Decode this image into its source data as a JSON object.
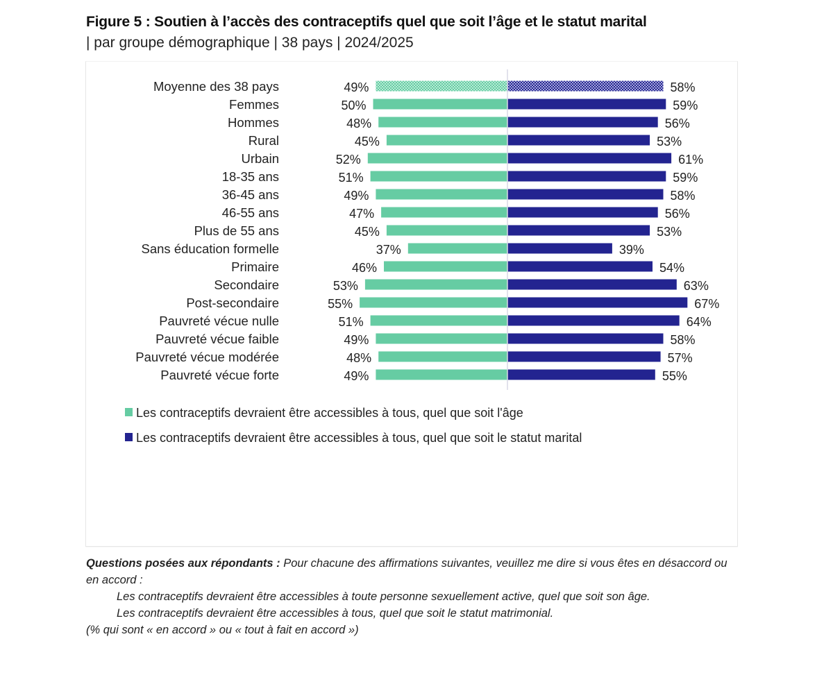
{
  "header": {
    "title": "Figure 5 : Soutien à l’accès des contraceptifs quel que soit l’âge et le statut marital",
    "subtitle": "| par groupe démographique | 38 pays | 2024/2025"
  },
  "colors": {
    "age_series": "#66cca3",
    "marital_series": "#232490",
    "age_series_average": "#9ee3c7",
    "marital_series_average": "#6d6cbf",
    "axis": "#d9d9e6"
  },
  "chart_data": {
    "type": "bar",
    "orientation": "horizontal-diverging",
    "title": "Figure 5 : Soutien à l’accès des contraceptifs quel que soit l’âge et le statut marital",
    "subtitle": "| par groupe démographique | 38 pays | 2024/2025",
    "xlabel": "",
    "ylabel": "",
    "unit": "%",
    "xlim": [
      0,
      100
    ],
    "grid": false,
    "legend_position": "bottom",
    "groups": [
      {
        "name": "average",
        "categories": [
          "Moyenne des 38 pays"
        ],
        "pattern": "checkered"
      },
      {
        "name": "sexe",
        "categories": [
          "Femmes",
          "Hommes"
        ]
      },
      {
        "name": "milieu",
        "categories": [
          "Rural",
          "Urbain"
        ]
      },
      {
        "name": "age",
        "categories": [
          "18-35 ans",
          "36-45 ans",
          "46-55 ans",
          "Plus de 55 ans"
        ]
      },
      {
        "name": "education",
        "categories": [
          "Sans éducation formelle",
          "Primaire",
          "Secondaire",
          "Post-secondaire"
        ]
      },
      {
        "name": "pauvrete",
        "categories": [
          "Pauvreté vécue nulle",
          "Pauvreté vécue faible",
          "Pauvreté vécue modérée",
          "Pauvreté vécue forte"
        ]
      }
    ],
    "categories": [
      "Moyenne des 38 pays",
      "Femmes",
      "Hommes",
      "Rural",
      "Urbain",
      "18-35 ans",
      "36-45 ans",
      "46-55 ans",
      "Plus de 55 ans",
      "Sans éducation formelle",
      "Primaire",
      "Secondaire",
      "Post-secondaire",
      "Pauvreté vécue nulle",
      "Pauvreté vécue faible",
      "Pauvreté vécue modérée",
      "Pauvreté vécue forte"
    ],
    "series": [
      {
        "name": "Les contraceptifs devraient être accessibles à tous, quel que soit l'âge",
        "direction": "left",
        "values": [
          49,
          50,
          48,
          45,
          52,
          51,
          49,
          47,
          45,
          37,
          46,
          53,
          55,
          51,
          49,
          48,
          49
        ]
      },
      {
        "name": "Les contraceptifs devraient être accessibles à tous, quel que soit le statut marital",
        "direction": "right",
        "values": [
          58,
          59,
          56,
          53,
          61,
          59,
          58,
          56,
          53,
          39,
          54,
          63,
          67,
          64,
          58,
          57,
          55
        ]
      }
    ]
  },
  "legend": [
    {
      "label": "Les contraceptifs devraient être accessibles à tous, quel que soit l'âge"
    },
    {
      "label": "Les contraceptifs devraient être accessibles à tous, quel que soit le statut marital"
    }
  ],
  "notes": {
    "question_label": "Questions posées aux répondants :",
    "question_intro": " Pour chacune des affirmations suivantes, veuillez me dire si vous êtes en désaccord ou en accord :",
    "statement_1": "Les contraceptifs devraient être accessibles à toute personne sexuellement active, quel que soit son âge.",
    "statement_2": "Les contraceptifs devraient être accessibles à tous, quel que soit le statut matrimonial.",
    "footnote": "(% qui sont « en accord » ou « tout à fait en accord »)"
  }
}
